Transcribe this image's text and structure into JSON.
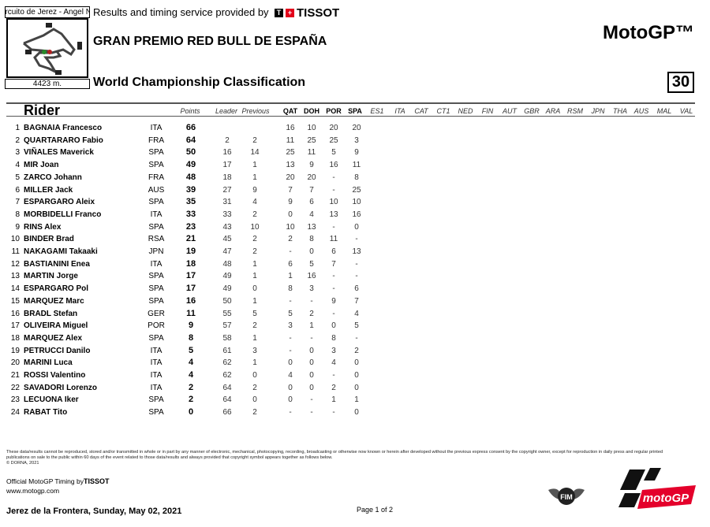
{
  "header": {
    "circuit_name": "Circuito de Jerez - Angel Nieto",
    "circuit_length": "4423 m.",
    "provided_by": "Results and timing service provided by",
    "timing_brand": "TISSOT",
    "event_title": "GRAN PREMIO RED BULL DE ESPAÑA",
    "classification_title": "World Championship Classification",
    "series": "MotoGP™",
    "document_number": "30"
  },
  "table": {
    "rider_header": "Rider",
    "columns": [
      "Points",
      "Leader",
      "Previous"
    ],
    "races": [
      "QAT",
      "DOH",
      "POR",
      "SPA",
      "ES1",
      "ITA",
      "CAT",
      "CT1",
      "NED",
      "FIN",
      "AUT",
      "GBR",
      "ARA",
      "RSM",
      "JPN",
      "THA",
      "AUS",
      "MAL",
      "VAL"
    ],
    "rows": [
      [
        "1",
        "BAGNAIA Francesco",
        "ITA",
        "66",
        "",
        "",
        "16",
        "10",
        "20",
        "20"
      ],
      [
        "2",
        "QUARTARARO Fabio",
        "FRA",
        "64",
        "2",
        "2",
        "11",
        "25",
        "25",
        "3"
      ],
      [
        "3",
        "VIÑALES Maverick",
        "SPA",
        "50",
        "16",
        "14",
        "25",
        "11",
        "5",
        "9"
      ],
      [
        "4",
        "MIR Joan",
        "SPA",
        "49",
        "17",
        "1",
        "13",
        "9",
        "16",
        "11"
      ],
      [
        "5",
        "ZARCO Johann",
        "FRA",
        "48",
        "18",
        "1",
        "20",
        "20",
        "-",
        "8"
      ],
      [
        "6",
        "MILLER Jack",
        "AUS",
        "39",
        "27",
        "9",
        "7",
        "7",
        "-",
        "25"
      ],
      [
        "7",
        "ESPARGARO Aleix",
        "SPA",
        "35",
        "31",
        "4",
        "9",
        "6",
        "10",
        "10"
      ],
      [
        "8",
        "MORBIDELLI Franco",
        "ITA",
        "33",
        "33",
        "2",
        "0",
        "4",
        "13",
        "16"
      ],
      [
        "9",
        "RINS Alex",
        "SPA",
        "23",
        "43",
        "10",
        "10",
        "13",
        "-",
        "0"
      ],
      [
        "10",
        "BINDER Brad",
        "RSA",
        "21",
        "45",
        "2",
        "2",
        "8",
        "11",
        "-"
      ],
      [
        "11",
        "NAKAGAMI Takaaki",
        "JPN",
        "19",
        "47",
        "2",
        "-",
        "0",
        "6",
        "13"
      ],
      [
        "12",
        "BASTIANINI Enea",
        "ITA",
        "18",
        "48",
        "1",
        "6",
        "5",
        "7",
        "-"
      ],
      [
        "13",
        "MARTIN Jorge",
        "SPA",
        "17",
        "49",
        "1",
        "1",
        "16",
        "-",
        "-"
      ],
      [
        "14",
        "ESPARGARO Pol",
        "SPA",
        "17",
        "49",
        "0",
        "8",
        "3",
        "-",
        "6"
      ],
      [
        "15",
        "MARQUEZ Marc",
        "SPA",
        "16",
        "50",
        "1",
        "-",
        "-",
        "9",
        "7"
      ],
      [
        "16",
        "BRADL Stefan",
        "GER",
        "11",
        "55",
        "5",
        "5",
        "2",
        "-",
        "4"
      ],
      [
        "17",
        "OLIVEIRA Miguel",
        "POR",
        "9",
        "57",
        "2",
        "3",
        "1",
        "0",
        "5"
      ],
      [
        "18",
        "MARQUEZ Alex",
        "SPA",
        "8",
        "58",
        "1",
        "-",
        "-",
        "8",
        "-"
      ],
      [
        "19",
        "PETRUCCI Danilo",
        "ITA",
        "5",
        "61",
        "3",
        "-",
        "0",
        "3",
        "2"
      ],
      [
        "20",
        "MARINI Luca",
        "ITA",
        "4",
        "62",
        "1",
        "0",
        "0",
        "4",
        "0"
      ],
      [
        "21",
        "ROSSI Valentino",
        "ITA",
        "4",
        "62",
        "0",
        "4",
        "0",
        "-",
        "0"
      ],
      [
        "22",
        "SAVADORI Lorenzo",
        "ITA",
        "2",
        "64",
        "2",
        "0",
        "0",
        "2",
        "0"
      ],
      [
        "23",
        "LECUONA Iker",
        "SPA",
        "2",
        "64",
        "0",
        "0",
        "-",
        "1",
        "1"
      ],
      [
        "24",
        "RABAT Tito",
        "SPA",
        "0",
        "66",
        "2",
        "-",
        "-",
        "-",
        "0"
      ]
    ]
  },
  "footer": {
    "disclaimer": "These data/results cannot be reproduced, stored and/or transmitted in whole or in part by any manner of electronic, mechanical, photocopying, recording, broadcasting or otherwise now known or herein after developed without the previous express consent by the copyright owner, except for reproduction in daily press and regular printed publications on sale to the public within 60 days of the event related to those data/results and always provided that copyright symbol appears together as follows below.",
    "copyright": "© DORNA, 2021",
    "official_timing": "Official MotoGP Timing by",
    "timing_brand": "TISSOT",
    "website": "www.motogp.com",
    "place_date": "Jerez de la Frontera, Sunday, May 02, 2021",
    "page": "Page 1 of 2",
    "fim_logo": "FIM",
    "motogp_logo": "motoGP"
  },
  "colors": {
    "tissot_red": "#e2001a",
    "motogp_red": "#e4002b",
    "rule": "#555555"
  }
}
